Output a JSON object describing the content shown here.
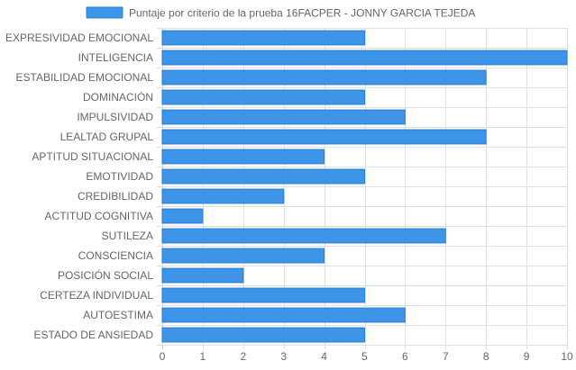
{
  "chart_data": {
    "type": "bar",
    "orientation": "horizontal",
    "categories": [
      "EXPRESIVIDAD EMOCIONAL",
      "INTELIGENCIA",
      "ESTABILIDAD EMOCIONAL",
      "DOMINACIÓN",
      "IMPULSIVIDAD",
      "LEALTAD GRUPAL",
      "APTITUD SITUACIONAL",
      "EMOTIVIDAD",
      "CREDIBILIDAD",
      "ACTITUD COGNITIVA",
      "SUTILEZA",
      "CONSCIENCIA",
      "POSICIÓN SOCIAL",
      "CERTEZA INDIVIDUAL",
      "AUTOESTIMA",
      "ESTADO DE ANSIEDAD"
    ],
    "series": [
      {
        "name": "Puntaje por criterio de la prueba 16FACPER - JONNY GARCIA TEJEDA",
        "values": [
          5,
          10,
          8,
          5,
          6,
          8,
          4,
          5,
          3,
          1,
          7,
          4,
          2,
          5,
          6,
          5
        ],
        "color": "#3e95e8",
        "border_color": "#2a7fd6"
      }
    ],
    "xlim": [
      0,
      10
    ],
    "x_ticks": [
      "0",
      "1",
      "2",
      "3",
      "4",
      "5",
      "6",
      "7",
      "8",
      "9",
      "10"
    ],
    "grid": true,
    "legend": "top-center",
    "grid_color": "#e0e0e0",
    "text_color": "#666666"
  }
}
